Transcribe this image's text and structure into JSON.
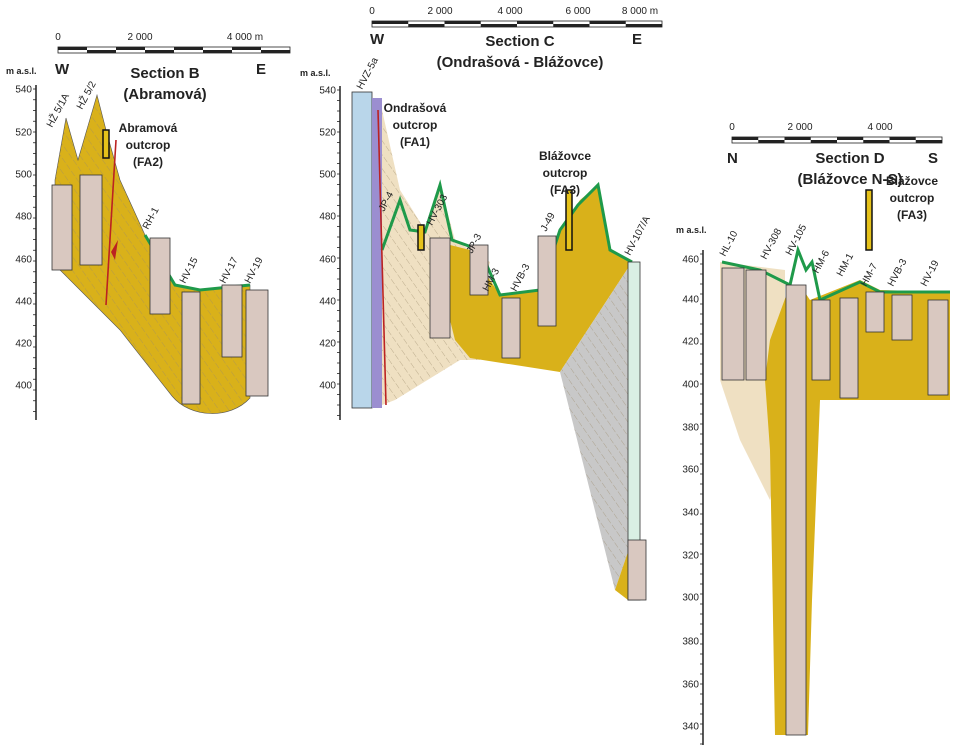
{
  "sections": [
    {
      "title": "Section B",
      "subtitle": "(Abramová)",
      "left_end": "W",
      "right_end": "E",
      "axis_label": "m a.s.l.",
      "scale": [
        "0",
        "2 000",
        "4 000 m"
      ],
      "elevations": [
        "540",
        "520",
        "500",
        "480",
        "460",
        "440",
        "420",
        "400"
      ],
      "boreholes": [
        "HŽ 5/1A",
        "HŽ 5/2",
        "RH-1",
        "HV-15",
        "HV-17",
        "HV-19"
      ],
      "outcrops": [
        [
          "Abramová",
          "outcrop",
          "(FA2)"
        ]
      ]
    },
    {
      "title": "Section C",
      "subtitle": "(Ondrašová - Blážovce)",
      "left_end": "W",
      "right_end": "E",
      "axis_label": "m a.s.l.",
      "scale": [
        "0",
        "2 000",
        "4 000",
        "6 000",
        "8 000 m"
      ],
      "elevations": [
        "540",
        "520",
        "500",
        "480",
        "460",
        "440",
        "420",
        "400"
      ],
      "boreholes": [
        "HVZ-5a",
        "JP-4",
        "HV-303",
        "JP-3",
        "HM-3",
        "HVB-3",
        "J-49",
        "HV-107/A"
      ],
      "outcrops": [
        [
          "Ondrašová",
          "outcrop",
          "(FA1)"
        ],
        [
          "Blážovce",
          "outcrop",
          "(FA3)"
        ]
      ]
    },
    {
      "title": "Section D",
      "subtitle": "(Blážovce N-S)",
      "left_end": "N",
      "right_end": "S",
      "axis_label": "m a.s.l.",
      "scale": [
        "0",
        "2 000",
        "4 000"
      ],
      "elevations": [
        "460",
        "440",
        "420",
        "400",
        "380",
        "360",
        "340",
        "320",
        "300",
        "380",
        "360",
        "340"
      ],
      "boreholes": [
        "HL-10",
        "HV-308",
        "HV-105",
        "HM-6",
        "HM-1",
        "HM-7",
        "HVB-3",
        "HV-19"
      ],
      "outcrops": [
        [
          "Blážovce",
          "outcrop",
          "(FA3)"
        ]
      ]
    }
  ]
}
